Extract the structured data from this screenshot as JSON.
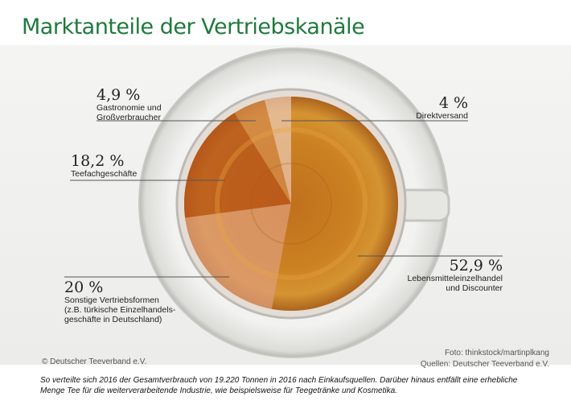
{
  "title": "Marktanteile der Vertriebskanäle",
  "chart_data": {
    "type": "pie",
    "title": "Marktanteile der Vertriebskanäle",
    "start": "12 o'clock, clockwise",
    "slices": [
      {
        "label": "Lebensmitteleinzelhandel und Discounter",
        "value": 52.9,
        "value_label": "52,9 %",
        "desc_lines": [
          "Lebensmitteleinzelhandel",
          "und Discounter"
        ],
        "color": "#c2741f"
      },
      {
        "label": "Sonstige Vertriebsformen (z.B. türkische Einzelhandelsgeschäfte in Deutschland)",
        "value": 20,
        "value_label": "20 %",
        "desc_lines": [
          "Sonstige Vertriebsformen",
          "(z.B. türkische Einzelhandels-",
          "geschäfte in Deutschland)"
        ],
        "color": "#dc9a72"
      },
      {
        "label": "Teefachgeschäfte",
        "value": 18.2,
        "value_label": "18,2 %",
        "desc_lines": [
          "Teefachgeschäfte"
        ],
        "color": "#b8551a"
      },
      {
        "label": "Gastronomie und Großverbraucher",
        "value": 4.9,
        "value_label": "4,9 %",
        "desc_lines": [
          "Gastronomie und",
          "Großverbraucher"
        ],
        "color": "#d28848"
      },
      {
        "label": "Direktversand",
        "value": 4,
        "value_label": "4 %",
        "desc_lines": [
          "Direktversand"
        ],
        "color": "#e8c2a6"
      }
    ]
  },
  "credits": {
    "copyright": "© Deutscher Teeverband e.V.",
    "photo": "Foto: thinkstock/martinplkang",
    "source": "Quellen: Deutscher Teeverband e.V."
  },
  "caption": "So verteilte sich 2016 der Gesamtverbrauch von 19.220 Tonnen in 2016 nach Einkaufsquellen. Darüber hinaus entfällt eine erhebliche Menge Tee für die weiterverarbeitende Industrie, wie beispielsweise für Teegetränke und Kosmetika."
}
